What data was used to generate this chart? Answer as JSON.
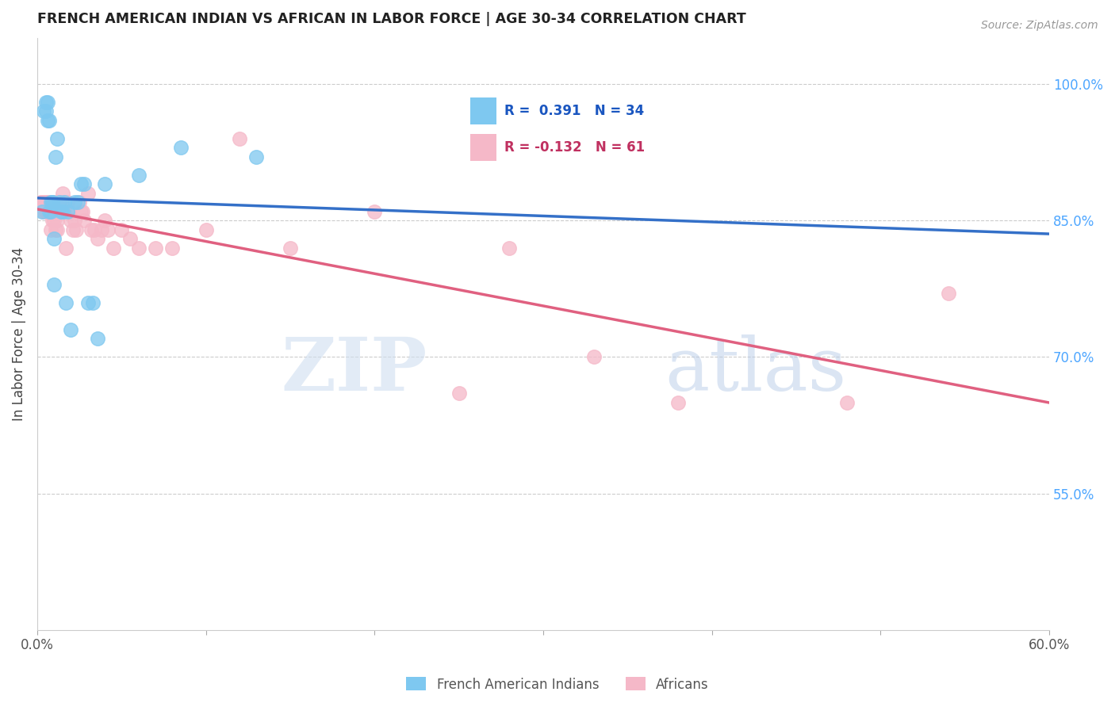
{
  "title": "FRENCH AMERICAN INDIAN VS AFRICAN IN LABOR FORCE | AGE 30-34 CORRELATION CHART",
  "source": "Source: ZipAtlas.com",
  "xlabel": "",
  "ylabel": "In Labor Force | Age 30-34",
  "xlim": [
    0.0,
    0.6
  ],
  "ylim": [
    0.4,
    1.05
  ],
  "xticks": [
    0.0,
    0.1,
    0.2,
    0.3,
    0.4,
    0.5,
    0.6
  ],
  "xticklabels": [
    "0.0%",
    "",
    "",
    "",
    "",
    "",
    "60.0%"
  ],
  "yticks_right": [
    1.0,
    0.85,
    0.7,
    0.55
  ],
  "ytick_right_labels": [
    "100.0%",
    "85.0%",
    "70.0%",
    "55.0%"
  ],
  "R_blue": 0.391,
  "N_blue": 34,
  "R_pink": -0.132,
  "N_pink": 61,
  "blue_color": "#7ec8f0",
  "pink_color": "#f5b8c8",
  "blue_line_color": "#3470c8",
  "pink_line_color": "#e06080",
  "watermark_zip": "ZIP",
  "watermark_atlas": "atlas",
  "legend_entries": [
    "French American Indians",
    "Africans"
  ],
  "blue_x": [
    0.003,
    0.004,
    0.005,
    0.005,
    0.006,
    0.006,
    0.007,
    0.007,
    0.008,
    0.008,
    0.009,
    0.009,
    0.01,
    0.01,
    0.011,
    0.012,
    0.013,
    0.014,
    0.015,
    0.016,
    0.017,
    0.018,
    0.02,
    0.022,
    0.024,
    0.026,
    0.028,
    0.03,
    0.033,
    0.036,
    0.04,
    0.06,
    0.085,
    0.13
  ],
  "blue_y": [
    0.86,
    0.97,
    0.97,
    0.98,
    0.96,
    0.98,
    0.96,
    0.86,
    0.86,
    0.87,
    0.87,
    0.87,
    0.83,
    0.78,
    0.92,
    0.94,
    0.87,
    0.86,
    0.86,
    0.87,
    0.76,
    0.86,
    0.73,
    0.87,
    0.87,
    0.89,
    0.89,
    0.76,
    0.76,
    0.72,
    0.89,
    0.9,
    0.93,
    0.92
  ],
  "pink_x": [
    0.002,
    0.003,
    0.004,
    0.004,
    0.005,
    0.005,
    0.006,
    0.006,
    0.006,
    0.007,
    0.007,
    0.008,
    0.008,
    0.008,
    0.009,
    0.009,
    0.01,
    0.01,
    0.011,
    0.011,
    0.012,
    0.012,
    0.013,
    0.014,
    0.015,
    0.015,
    0.016,
    0.017,
    0.018,
    0.019,
    0.02,
    0.021,
    0.022,
    0.023,
    0.025,
    0.026,
    0.027,
    0.028,
    0.03,
    0.032,
    0.034,
    0.036,
    0.038,
    0.04,
    0.042,
    0.045,
    0.05,
    0.055,
    0.06,
    0.07,
    0.08,
    0.1,
    0.12,
    0.15,
    0.2,
    0.25,
    0.28,
    0.33,
    0.38,
    0.48,
    0.54
  ],
  "pink_y": [
    0.87,
    0.87,
    0.87,
    0.86,
    0.87,
    0.86,
    0.87,
    0.87,
    0.86,
    0.87,
    0.86,
    0.87,
    0.86,
    0.84,
    0.87,
    0.85,
    0.86,
    0.85,
    0.84,
    0.87,
    0.85,
    0.84,
    0.87,
    0.86,
    0.88,
    0.87,
    0.86,
    0.82,
    0.87,
    0.86,
    0.85,
    0.84,
    0.85,
    0.84,
    0.87,
    0.86,
    0.86,
    0.85,
    0.88,
    0.84,
    0.84,
    0.83,
    0.84,
    0.85,
    0.84,
    0.82,
    0.84,
    0.83,
    0.82,
    0.82,
    0.82,
    0.84,
    0.94,
    0.82,
    0.86,
    0.66,
    0.82,
    0.7,
    0.65,
    0.65,
    0.77
  ]
}
